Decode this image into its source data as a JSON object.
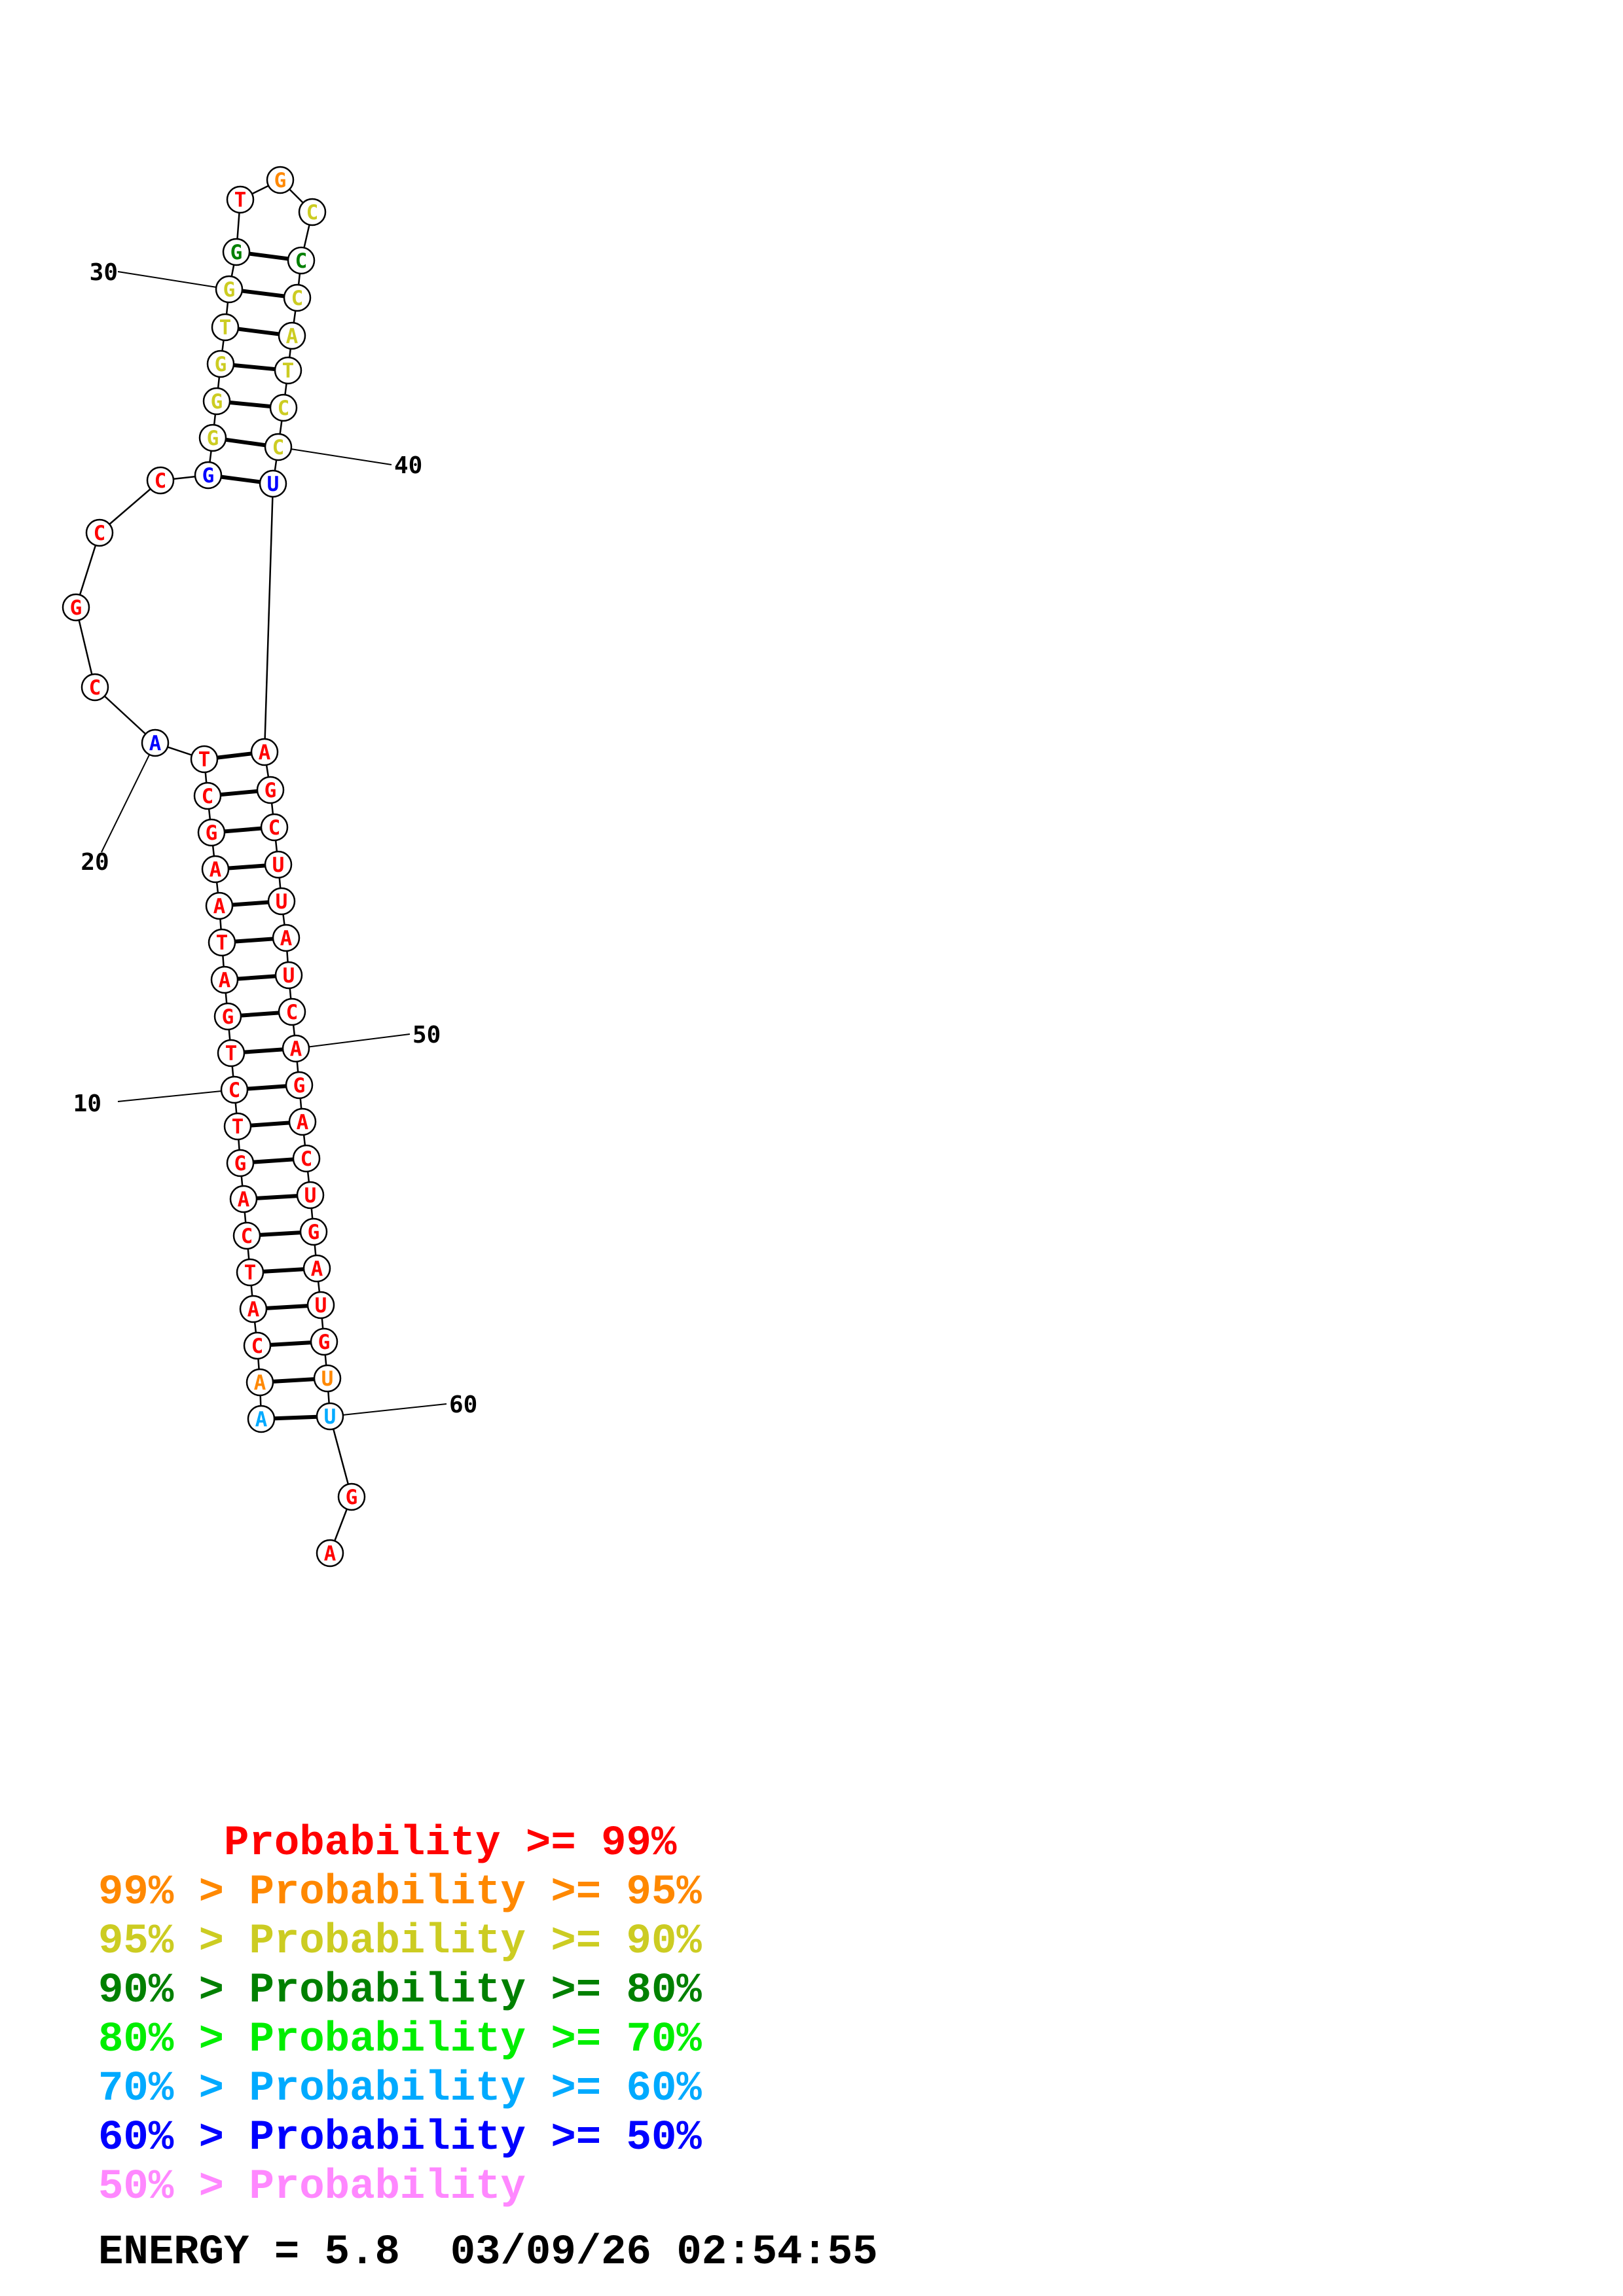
{
  "structure": {
    "nucleotides": [
      {
        "n": 1,
        "base": "A",
        "color": "#00aaff"
      },
      {
        "n": 2,
        "base": "A",
        "color": "#ff8800"
      },
      {
        "n": 3,
        "base": "C",
        "color": "#ff0000"
      },
      {
        "n": 4,
        "base": "A",
        "color": "#ff0000"
      },
      {
        "n": 5,
        "base": "T",
        "color": "#ff0000"
      },
      {
        "n": 6,
        "base": "C",
        "color": "#ff0000"
      },
      {
        "n": 7,
        "base": "A",
        "color": "#ff0000"
      },
      {
        "n": 8,
        "base": "G",
        "color": "#ff0000"
      },
      {
        "n": 9,
        "base": "T",
        "color": "#ff0000"
      },
      {
        "n": 10,
        "base": "C",
        "color": "#ff0000"
      },
      {
        "n": 11,
        "base": "T",
        "color": "#ff0000"
      },
      {
        "n": 12,
        "base": "G",
        "color": "#ff0000"
      },
      {
        "n": 13,
        "base": "A",
        "color": "#ff0000"
      },
      {
        "n": 14,
        "base": "T",
        "color": "#ff0000"
      },
      {
        "n": 15,
        "base": "A",
        "color": "#ff0000"
      },
      {
        "n": 16,
        "base": "A",
        "color": "#ff0000"
      },
      {
        "n": 17,
        "base": "G",
        "color": "#ff0000"
      },
      {
        "n": 18,
        "base": "C",
        "color": "#ff0000"
      },
      {
        "n": 19,
        "base": "T",
        "color": "#ff0000"
      },
      {
        "n": 20,
        "base": "A",
        "color": "#0000ff"
      },
      {
        "n": 21,
        "base": "C",
        "color": "#ff0000"
      },
      {
        "n": 22,
        "base": "G",
        "color": "#ff0000"
      },
      {
        "n": 23,
        "base": "C",
        "color": "#ff0000"
      },
      {
        "n": 24,
        "base": "C",
        "color": "#ff0000"
      },
      {
        "n": 25,
        "base": "G",
        "color": "#0000ff"
      },
      {
        "n": 26,
        "base": "G",
        "color": "#cccc22"
      },
      {
        "n": 27,
        "base": "G",
        "color": "#cccc22"
      },
      {
        "n": 28,
        "base": "G",
        "color": "#cccc22"
      },
      {
        "n": 29,
        "base": "T",
        "color": "#cccc22"
      },
      {
        "n": 30,
        "base": "G",
        "color": "#cccc22"
      },
      {
        "n": 31,
        "base": "G",
        "color": "#008000"
      },
      {
        "n": 32,
        "base": "T",
        "color": "#ff0000"
      },
      {
        "n": 33,
        "base": "G",
        "color": "#ff8800"
      },
      {
        "n": 34,
        "base": "C",
        "color": "#cccc22"
      },
      {
        "n": 35,
        "base": "C",
        "color": "#008000"
      },
      {
        "n": 36,
        "base": "C",
        "color": "#cccc22"
      },
      {
        "n": 37,
        "base": "A",
        "color": "#cccc22"
      },
      {
        "n": 38,
        "base": "T",
        "color": "#cccc22"
      },
      {
        "n": 39,
        "base": "C",
        "color": "#cccc22"
      },
      {
        "n": 40,
        "base": "C",
        "color": "#cccc22"
      },
      {
        "n": 41,
        "base": "U",
        "color": "#0000ff"
      },
      {
        "n": 42,
        "base": "A",
        "color": "#ff0000"
      },
      {
        "n": 43,
        "base": "G",
        "color": "#ff0000"
      },
      {
        "n": 44,
        "base": "C",
        "color": "#ff0000"
      },
      {
        "n": 45,
        "base": "U",
        "color": "#ff0000"
      },
      {
        "n": 46,
        "base": "U",
        "color": "#ff0000"
      },
      {
        "n": 47,
        "base": "A",
        "color": "#ff0000"
      },
      {
        "n": 48,
        "base": "U",
        "color": "#ff0000"
      },
      {
        "n": 49,
        "base": "C",
        "color": "#ff0000"
      },
      {
        "n": 50,
        "base": "A",
        "color": "#ff0000"
      },
      {
        "n": 51,
        "base": "G",
        "color": "#ff0000"
      },
      {
        "n": 52,
        "base": "A",
        "color": "#ff0000"
      },
      {
        "n": 53,
        "base": "C",
        "color": "#ff0000"
      },
      {
        "n": 54,
        "base": "U",
        "color": "#ff0000"
      },
      {
        "n": 55,
        "base": "G",
        "color": "#ff0000"
      },
      {
        "n": 56,
        "base": "A",
        "color": "#ff0000"
      },
      {
        "n": 57,
        "base": "U",
        "color": "#ff0000"
      },
      {
        "n": 58,
        "base": "G",
        "color": "#ff0000"
      },
      {
        "n": 59,
        "base": "U",
        "color": "#ff8800"
      },
      {
        "n": 60,
        "base": "U",
        "color": "#00aaff"
      },
      {
        "n": 61,
        "base": "G",
        "color": "#ff0000"
      },
      {
        "n": 62,
        "base": "A",
        "color": "#ff0000"
      }
    ],
    "pairs": [
      [
        1,
        60
      ],
      [
        2,
        59
      ],
      [
        3,
        58
      ],
      [
        4,
        57
      ],
      [
        5,
        56
      ],
      [
        6,
        55
      ],
      [
        7,
        54
      ],
      [
        8,
        53
      ],
      [
        9,
        52
      ],
      [
        10,
        51
      ],
      [
        11,
        50
      ],
      [
        12,
        49
      ],
      [
        13,
        48
      ],
      [
        14,
        47
      ],
      [
        15,
        46
      ],
      [
        16,
        45
      ],
      [
        17,
        44
      ],
      [
        18,
        43
      ],
      [
        19,
        42
      ],
      [
        25,
        41
      ],
      [
        26,
        40
      ],
      [
        27,
        39
      ],
      [
        28,
        38
      ],
      [
        29,
        37
      ],
      [
        30,
        36
      ],
      [
        31,
        35
      ]
    ],
    "position_labels": [
      "10",
      "20",
      "30",
      "40",
      "50",
      "60"
    ]
  },
  "legend": {
    "rows": [
      {
        "text": "     Probability >= 99%",
        "color": "#ff0000"
      },
      {
        "text": "99% > Probability >= 95%",
        "color": "#ff8800"
      },
      {
        "text": "95% > Probability >= 90%",
        "color": "#cccc22"
      },
      {
        "text": "90% > Probability >= 80%",
        "color": "#008000"
      },
      {
        "text": "80% > Probability >= 70%",
        "color": "#00ee00"
      },
      {
        "text": "70% > Probability >= 60%",
        "color": "#00aaff"
      },
      {
        "text": "60% > Probability >= 50%",
        "color": "#0000ff"
      },
      {
        "text": "50% > Probability",
        "color": "#ff88ff"
      }
    ]
  },
  "footer": {
    "energy_line": "ENERGY = 5.8  03/09/26 02:54:55"
  }
}
